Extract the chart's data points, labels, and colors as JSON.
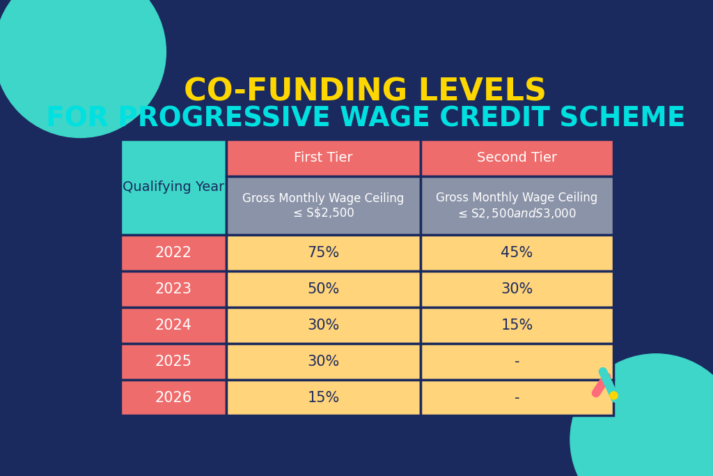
{
  "title_line1": "CO-FUNDING LEVELS",
  "title_line2": "FOR PROGRESSIVE WAGE CREDIT SCHEME",
  "title_color1": "#FFD700",
  "title_color2": "#00E0E0",
  "background_color": "#1B2A5E",
  "col0_header_text": "Qualifying Year",
  "col1_header_text": "First Tier",
  "col2_header_text": "Second Tier",
  "col1_subheader_line1": "Gross Monthly Wage Ceiling",
  "col1_subheader_line2": "≤ S$2,500",
  "col2_subheader_line1": "Gross Monthly Wage Ceiling",
  "col2_subheader_line2": "≤ S$2,500 and S$3,000",
  "years": [
    "2022",
    "2023",
    "2024",
    "2025",
    "2026"
  ],
  "tier1_values": [
    "75%",
    "50%",
    "30%",
    "30%",
    "15%"
  ],
  "tier2_values": [
    "45%",
    "30%",
    "15%",
    "-",
    "-"
  ],
  "color_teal": "#3DD6C8",
  "color_salmon": "#EF6C6C",
  "color_gray": "#8B93A8",
  "color_yellow": "#FFD47A",
  "color_dark_navy": "#1B2A5E",
  "color_border": "#1B2A5E"
}
